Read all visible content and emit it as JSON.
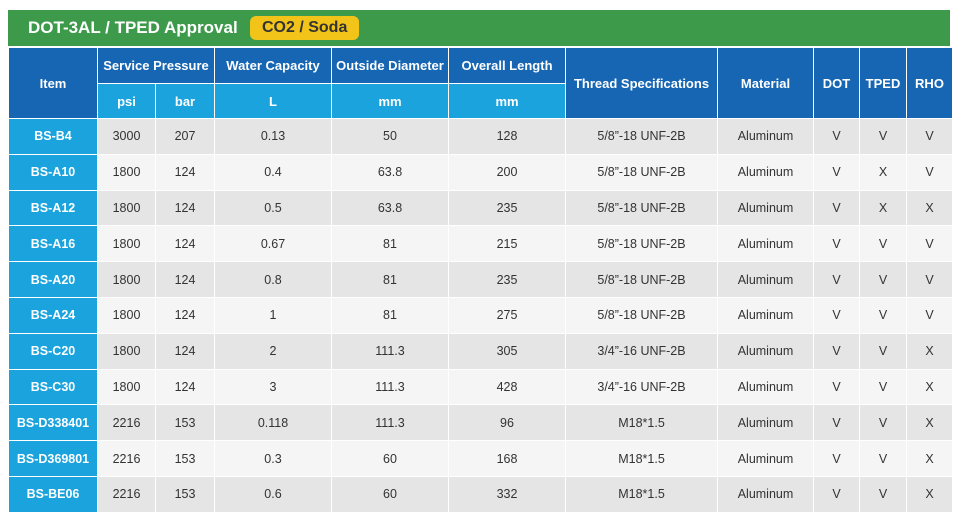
{
  "header": {
    "title": "DOT-3AL / TPED Approval",
    "badge": "CO2 / Soda"
  },
  "table": {
    "columns": [
      "Item",
      "Service Pressure",
      "Water Capacity",
      "Outside Diameter",
      "Overall Length",
      "Thread Specifications",
      "Material",
      "DOT",
      "TPED",
      "RHO"
    ],
    "units": [
      "psi",
      "bar",
      "L",
      "mm",
      "mm"
    ],
    "rows": [
      [
        "BS-B4",
        "3000",
        "207",
        "0.13",
        "50",
        "128",
        "5/8”-18 UNF-2B",
        "Aluminum",
        "V",
        "V",
        "V"
      ],
      [
        "BS-A10",
        "1800",
        "124",
        "0.4",
        "63.8",
        "200",
        "5/8”-18 UNF-2B",
        "Aluminum",
        "V",
        "X",
        "V"
      ],
      [
        "BS-A12",
        "1800",
        "124",
        "0.5",
        "63.8",
        "235",
        "5/8”-18 UNF-2B",
        "Aluminum",
        "V",
        "X",
        "X"
      ],
      [
        "BS-A16",
        "1800",
        "124",
        "0.67",
        "81",
        "215",
        "5/8”-18 UNF-2B",
        "Aluminum",
        "V",
        "V",
        "V"
      ],
      [
        "BS-A20",
        "1800",
        "124",
        "0.8",
        "81",
        "235",
        "5/8”-18 UNF-2B",
        "Aluminum",
        "V",
        "V",
        "V"
      ],
      [
        "BS-A24",
        "1800",
        "124",
        "1",
        "81",
        "275",
        "5/8”-18 UNF-2B",
        "Aluminum",
        "V",
        "V",
        "V"
      ],
      [
        "BS-C20",
        "1800",
        "124",
        "2",
        "111.3",
        "305",
        "3/4”-16 UNF-2B",
        "Aluminum",
        "V",
        "V",
        "X"
      ],
      [
        "BS-C30",
        "1800",
        "124",
        "3",
        "111.3",
        "428",
        "3/4”-16 UNF-2B",
        "Aluminum",
        "V",
        "V",
        "X"
      ],
      [
        "BS-D338401",
        "2216",
        "153",
        "0.118",
        "111.3",
        "96",
        "M18*1.5",
        "Aluminum",
        "V",
        "V",
        "X"
      ],
      [
        "BS-D369801",
        "2216",
        "153",
        "0.3",
        "60",
        "168",
        "M18*1.5",
        "Aluminum",
        "V",
        "V",
        "X"
      ],
      [
        "BS-BE06",
        "2216",
        "153",
        "0.6",
        "60",
        "332",
        "M18*1.5",
        "Aluminum",
        "V",
        "V",
        "X"
      ]
    ]
  }
}
